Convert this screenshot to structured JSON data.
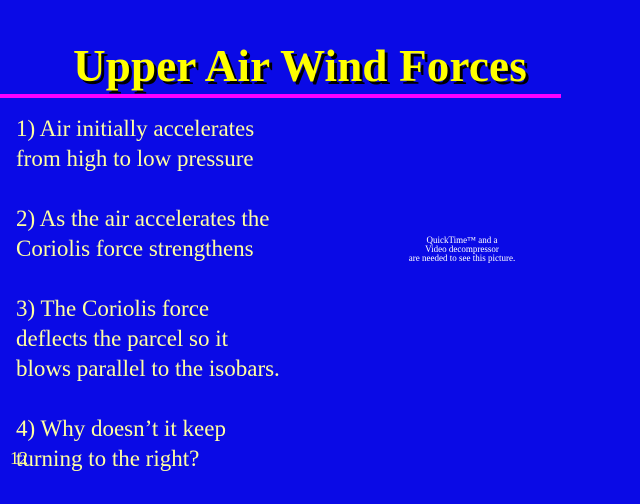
{
  "slide": {
    "title": "Upper Air Wind Forces",
    "bullets": [
      {
        "lines": [
          "1) Air initially accelerates",
          "from high to low pressure"
        ]
      },
      {
        "lines": [
          "2) As the air accelerates the",
          "Coriolis force strengthens"
        ]
      },
      {
        "lines": [
          "3) The Coriolis force",
          "deflects the parcel so it",
          "blows parallel to the isobars."
        ]
      },
      {
        "lines": [
          "4) Why doesn’t it keep",
          "turning to the right?"
        ]
      }
    ],
    "placeholder": {
      "line1": "QuickTime™ and a",
      "line2": "Video decompressor",
      "line3": "are needed to see this picture."
    },
    "slide_number": "12"
  },
  "colors": {
    "background": "#0a0ae6",
    "title": "#ffff00",
    "text": "#ffffa0",
    "rule": "#ff00ff"
  }
}
